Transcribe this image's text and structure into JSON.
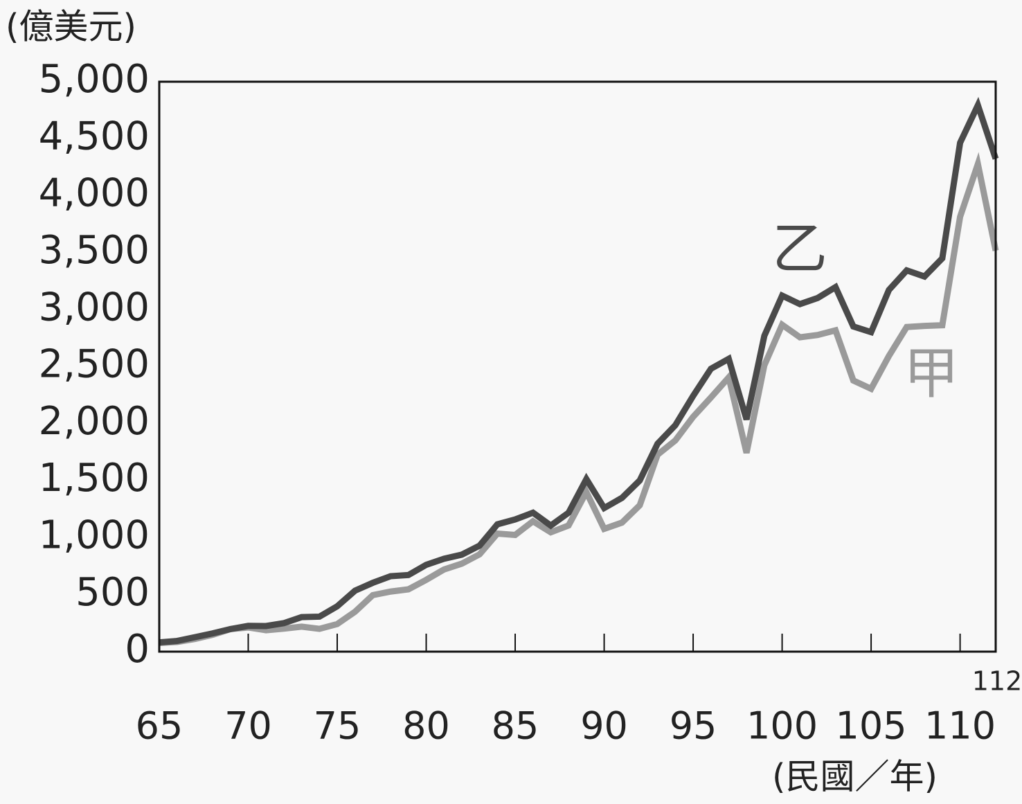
{
  "chart_data": {
    "type": "line",
    "y_label": "(億美元)",
    "x_label": "(民國／年)",
    "x": [
      65,
      66,
      67,
      68,
      69,
      70,
      71,
      72,
      73,
      74,
      75,
      76,
      77,
      78,
      79,
      80,
      81,
      82,
      83,
      84,
      85,
      86,
      87,
      88,
      89,
      90,
      91,
      92,
      93,
      94,
      95,
      96,
      97,
      98,
      99,
      100,
      101,
      102,
      103,
      104,
      105,
      106,
      107,
      108,
      109,
      110,
      111,
      112
    ],
    "series": [
      {
        "name": "甲",
        "color": "#9a9a9a",
        "values": [
          76,
          85,
          111,
          148,
          198,
          212,
          188,
          202,
          219,
          200,
          242,
          350,
          496,
          527,
          547,
          630,
          721,
          772,
          854,
          1036,
          1024,
          1144,
          1047,
          1107,
          1400,
          1077,
          1132,
          1284,
          1728,
          1853,
          2060,
          2230,
          2406,
          1744,
          2512,
          2868,
          2758,
          2778,
          2819,
          2379,
          2306,
          2594,
          2848,
          2858,
          2864,
          3815,
          4278,
          3518
        ]
      },
      {
        "name": "乙",
        "color": "#4a4a4a",
        "values": [
          81,
          94,
          127,
          160,
          198,
          226,
          225,
          250,
          303,
          307,
          398,
          535,
          604,
          662,
          672,
          762,
          815,
          851,
          930,
          1117,
          1160,
          1219,
          1106,
          1219,
          1514,
          1260,
          1349,
          1502,
          1824,
          1987,
          2244,
          2482,
          2569,
          2037,
          2771,
          3123,
          3049,
          3103,
          3198,
          2853,
          2803,
          3173,
          3345,
          3291,
          3451,
          4464,
          4794,
          4324
        ]
      }
    ],
    "xlim": [
      65,
      112
    ],
    "xticks": [
      65,
      70,
      75,
      80,
      85,
      90,
      95,
      100,
      105,
      110,
      112
    ],
    "ylim": [
      0,
      5000
    ],
    "yticks": [
      0,
      500,
      {
        "value": 1000,
        "label": "1,000"
      },
      {
        "value": 1500,
        "label": "1,500"
      },
      {
        "value": 2000,
        "label": "2,000"
      },
      {
        "value": 2500,
        "label": "2,500"
      },
      {
        "value": 3000,
        "label": "3,000"
      },
      {
        "value": 3500,
        "label": "3,500"
      },
      {
        "value": 4000,
        "label": "4,000"
      },
      {
        "value": 4500,
        "label": "4,500"
      },
      {
        "value": 5000,
        "label": "5,000"
      }
    ]
  }
}
